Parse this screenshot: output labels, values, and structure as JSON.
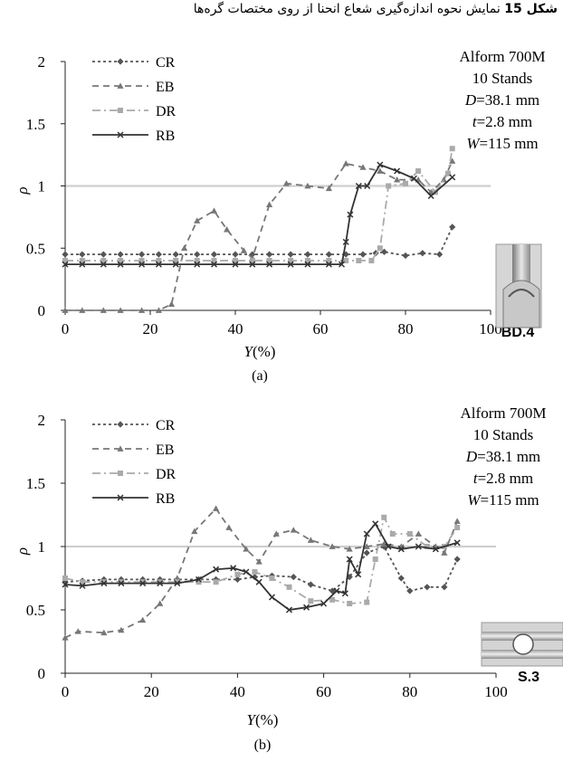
{
  "caption": {
    "label": "شکل 15",
    "text": "نمایش نحوه اندازه‌گیری شعاع انحنا از روی مختصات گره‌ها"
  },
  "chart_data": [
    {
      "type": "line",
      "subtitle": "(a)",
      "xlabel_italic": "Y",
      "xlabel_rest": "(%)",
      "ylabel": "ρ",
      "xlim": [
        0,
        100
      ],
      "ylim": [
        0,
        2
      ],
      "xticks": [
        "0",
        "20",
        "40",
        "60",
        "80",
        "100"
      ],
      "yticks": [
        "0",
        "0.5",
        "1",
        "1.5",
        "2"
      ],
      "reference_line": 1,
      "info": [
        {
          "italic": "",
          "text": "Alform 700M"
        },
        {
          "italic": "",
          "text": "10 Stands"
        },
        {
          "italic": "D",
          "text": "=38.1 mm"
        },
        {
          "italic": "t",
          "text": "=2.8 mm"
        },
        {
          "italic": "W",
          "text": "=115 mm"
        }
      ],
      "inset_label": "BD.4",
      "series": [
        {
          "name": "CR",
          "color": "#555555",
          "dash": "3,3",
          "marker": "diamond",
          "x": [
            0,
            4,
            9,
            13,
            18,
            22,
            26,
            31,
            35,
            40,
            44,
            48,
            53,
            57,
            62,
            66,
            70,
            73,
            75,
            80,
            84,
            88,
            91
          ],
          "y": [
            0.45,
            0.45,
            0.45,
            0.45,
            0.45,
            0.45,
            0.45,
            0.45,
            0.45,
            0.45,
            0.45,
            0.45,
            0.45,
            0.45,
            0.45,
            0.45,
            0.45,
            0.46,
            0.47,
            0.44,
            0.46,
            0.45,
            0.67
          ]
        },
        {
          "name": "EB",
          "color": "#777777",
          "dash": "7,5",
          "marker": "triangle",
          "x": [
            0,
            4,
            9,
            13,
            18,
            22,
            25,
            28,
            31,
            35,
            38,
            42,
            44,
            48,
            52,
            57,
            62,
            66,
            70,
            74,
            78,
            83,
            86,
            89,
            91
          ],
          "y": [
            0,
            0,
            0,
            0,
            0,
            0,
            0.05,
            0.5,
            0.72,
            0.8,
            0.65,
            0.48,
            0.42,
            0.85,
            1.02,
            1.0,
            0.98,
            1.18,
            1.15,
            1.12,
            1.05,
            1.05,
            0.95,
            1.05,
            1.2
          ]
        },
        {
          "name": "DR",
          "color": "#aaaaaa",
          "dash": "9,4,2,4",
          "marker": "square",
          "x": [
            0,
            4,
            9,
            13,
            18,
            22,
            26,
            31,
            35,
            40,
            44,
            48,
            53,
            57,
            62,
            66,
            69,
            72,
            74,
            76,
            80,
            83,
            87,
            90,
            91
          ],
          "y": [
            0.4,
            0.4,
            0.4,
            0.4,
            0.4,
            0.4,
            0.4,
            0.4,
            0.4,
            0.4,
            0.4,
            0.4,
            0.4,
            0.4,
            0.4,
            0.4,
            0.4,
            0.4,
            0.5,
            1.0,
            1.02,
            1.12,
            0.95,
            1.1,
            1.3
          ]
        },
        {
          "name": "RB",
          "color": "#333333",
          "dash": "",
          "marker": "x",
          "x": [
            0,
            4,
            9,
            13,
            18,
            22,
            26,
            31,
            35,
            40,
            44,
            48,
            53,
            57,
            62,
            65,
            66,
            67,
            69,
            71,
            74,
            78,
            82,
            86,
            91
          ],
          "y": [
            0.37,
            0.37,
            0.37,
            0.37,
            0.37,
            0.37,
            0.37,
            0.37,
            0.37,
            0.37,
            0.37,
            0.37,
            0.37,
            0.37,
            0.37,
            0.37,
            0.55,
            0.77,
            1.0,
            1.0,
            1.17,
            1.12,
            1.06,
            0.92,
            1.07
          ]
        }
      ]
    },
    {
      "type": "line",
      "subtitle": "(b)",
      "xlabel_italic": "Y",
      "xlabel_rest": "(%)",
      "ylabel": "ρ",
      "xlim": [
        0,
        100
      ],
      "ylim": [
        0,
        2
      ],
      "xticks": [
        "0",
        "20",
        "40",
        "60",
        "80",
        "100"
      ],
      "yticks": [
        "0",
        "0.5",
        "1",
        "1.5",
        "2"
      ],
      "reference_line": 1,
      "info": [
        {
          "italic": "",
          "text": "Alform 700M"
        },
        {
          "italic": "",
          "text": "10 Stands"
        },
        {
          "italic": "D",
          "text": "=38.1 mm"
        },
        {
          "italic": "t",
          "text": "=2.8 mm"
        },
        {
          "italic": "W",
          "text": "=115 mm"
        }
      ],
      "inset_label": "S.3",
      "series": [
        {
          "name": "CR",
          "color": "#555555",
          "dash": "3,3",
          "marker": "diamond",
          "x": [
            0,
            4,
            9,
            13,
            18,
            22,
            26,
            31,
            35,
            40,
            44,
            48,
            53,
            57,
            62,
            66,
            70,
            74,
            78,
            80,
            84,
            88,
            91
          ],
          "y": [
            0.72,
            0.73,
            0.74,
            0.74,
            0.74,
            0.74,
            0.74,
            0.74,
            0.74,
            0.74,
            0.76,
            0.77,
            0.76,
            0.7,
            0.65,
            0.76,
            0.95,
            1.0,
            0.75,
            0.65,
            0.68,
            0.68,
            0.9
          ]
        },
        {
          "name": "EB",
          "color": "#777777",
          "dash": "7,5",
          "marker": "triangle",
          "x": [
            0,
            3,
            9,
            13,
            18,
            22,
            26,
            30,
            35,
            38,
            42,
            45,
            49,
            53,
            57,
            62,
            66,
            70,
            74,
            78,
            82,
            86,
            88,
            91
          ],
          "y": [
            0.28,
            0.33,
            0.32,
            0.34,
            0.42,
            0.55,
            0.75,
            1.12,
            1.3,
            1.15,
            0.98,
            0.88,
            1.1,
            1.13,
            1.05,
            1.0,
            0.98,
            1.0,
            1.02,
            1.0,
            1.1,
            1.0,
            0.95,
            1.2
          ]
        },
        {
          "name": "DR",
          "color": "#aaaaaa",
          "dash": "9,4,2,4",
          "marker": "square",
          "x": [
            0,
            4,
            9,
            13,
            18,
            22,
            26,
            31,
            35,
            40,
            44,
            48,
            52,
            57,
            62,
            66,
            70,
            72,
            74,
            76,
            80,
            84,
            88,
            91
          ],
          "y": [
            0.75,
            0.72,
            0.72,
            0.72,
            0.72,
            0.72,
            0.72,
            0.72,
            0.72,
            0.78,
            0.8,
            0.75,
            0.68,
            0.57,
            0.58,
            0.55,
            0.56,
            0.9,
            1.23,
            1.1,
            1.1,
            1.0,
            1.0,
            1.15
          ]
        },
        {
          "name": "RB",
          "color": "#333333",
          "dash": "",
          "marker": "x",
          "x": [
            0,
            4,
            9,
            13,
            18,
            22,
            26,
            31,
            35,
            39,
            42,
            45,
            48,
            52,
            56,
            60,
            63,
            65,
            66,
            68,
            70,
            72,
            75,
            78,
            82,
            86,
            91
          ],
          "y": [
            0.7,
            0.69,
            0.71,
            0.71,
            0.71,
            0.71,
            0.71,
            0.74,
            0.82,
            0.83,
            0.8,
            0.72,
            0.6,
            0.5,
            0.52,
            0.55,
            0.65,
            0.63,
            0.9,
            0.78,
            1.1,
            1.18,
            1.0,
            0.98,
            1.0,
            0.98,
            1.03
          ]
        }
      ]
    }
  ]
}
